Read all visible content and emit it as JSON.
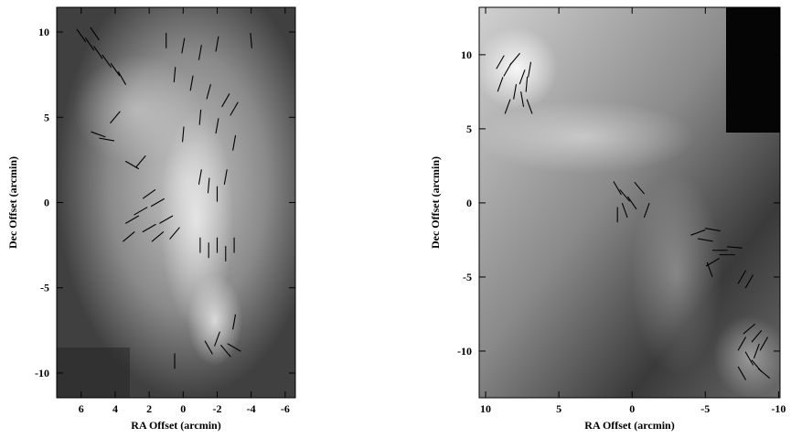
{
  "chart_data": [
    {
      "type": "vector",
      "xlabel": "RA Offset (arcmin)",
      "ylabel": "Dec Offset (arcmin)",
      "xlim": [
        7.44,
        -6.6
      ],
      "ylim": [
        -11.45,
        11.45
      ],
      "xticks": [
        6,
        4,
        2,
        0,
        -2,
        -4,
        -6
      ],
      "yticks": [
        10,
        5,
        0,
        -5,
        -10
      ],
      "color": "#000000",
      "vectors": {
        "x": [
          6,
          5.5,
          5,
          4.5,
          4,
          5.2,
          3.6,
          1,
          0,
          -1,
          -2,
          0.5,
          -0.5,
          -1.5,
          -2.5,
          -3,
          -1,
          -2,
          0,
          -3,
          -4,
          5,
          4.5,
          4,
          3,
          2.5,
          3,
          2.5,
          2,
          1.5,
          1,
          2,
          1.5,
          3.2,
          0.5,
          -1,
          -1.5,
          -2,
          -2.5,
          -1,
          -1.5,
          -2,
          -2.5,
          -3,
          -1.5,
          -2,
          -2.5,
          -3,
          0.5,
          -3
        ],
        "y": [
          9.8,
          9.3,
          8.8,
          8.3,
          7.8,
          9.9,
          7.3,
          9.5,
          9.2,
          8.8,
          9.3,
          7.5,
          7,
          6.5,
          6,
          5.5,
          5,
          4.5,
          4,
          3.5,
          9.5,
          4,
          3.7,
          5,
          2.2,
          2.4,
          -1,
          -0.5,
          -1.5,
          0,
          -1,
          0.5,
          -2,
          -2,
          -1.8,
          1.5,
          1,
          0.5,
          1.5,
          -2.5,
          -2.8,
          -2.5,
          -3,
          -2.5,
          -8.5,
          -8,
          -8.7,
          -8.5,
          -9.3,
          -7
        ],
        "angle": [
          35,
          35,
          35,
          35,
          35,
          35,
          30,
          0,
          -10,
          -10,
          -10,
          -5,
          -10,
          -15,
          -30,
          -30,
          -5,
          -10,
          -5,
          -10,
          5,
          70,
          80,
          -40,
          60,
          -40,
          -60,
          -60,
          -60,
          -60,
          -60,
          -55,
          -50,
          -50,
          -40,
          -10,
          -5,
          0,
          -10,
          0,
          0,
          0,
          0,
          0,
          30,
          -20,
          40,
          60,
          0,
          -10
        ]
      }
    },
    {
      "type": "vector",
      "xlabel": "RA Offset (arcmin)",
      "ylabel": "Dec Offset (arcmin)",
      "xlim": [
        10.44,
        -10.1
      ],
      "ylim": [
        -13.15,
        13.2
      ],
      "xticks": [
        10,
        5,
        0,
        -5,
        -10
      ],
      "yticks": [
        10,
        5,
        0,
        -5,
        -10
      ],
      "color": "#000000",
      "vectors": {
        "x": [
          9,
          8.5,
          8,
          7.5,
          7,
          9,
          8,
          7.5,
          7,
          8.5,
          7.2,
          1,
          0.5,
          0,
          0.5,
          -0.5,
          1,
          -1,
          -4.5,
          -5,
          -5.5,
          -6,
          -6.5,
          -5.5,
          -7,
          -5.3,
          -7.5,
          -8,
          -8,
          -8.5,
          -7.5,
          -8.5,
          -8,
          -8.5,
          -9,
          -7.5,
          -9
        ],
        "y": [
          9.5,
          9,
          9.7,
          8.5,
          9,
          8,
          7.5,
          7,
          6.5,
          6.5,
          8,
          1,
          0.5,
          0,
          -0.5,
          1,
          -0.8,
          -0.5,
          -2,
          -2.5,
          -1.8,
          -3.2,
          -3.5,
          -4,
          -3,
          -4.5,
          -5,
          -5.3,
          -8.5,
          -9,
          -9.5,
          -10,
          -10.5,
          -11,
          -11.5,
          -11.5,
          -9.5
        ],
        "angle": [
          -30,
          -30,
          -40,
          -20,
          -10,
          -20,
          -10,
          10,
          20,
          -20,
          -5,
          30,
          40,
          35,
          20,
          40,
          0,
          -20,
          -70,
          80,
          80,
          90,
          90,
          -60,
          85,
          20,
          -30,
          -30,
          -50,
          -40,
          -30,
          -20,
          30,
          40,
          50,
          30,
          -30
        ]
      }
    }
  ]
}
